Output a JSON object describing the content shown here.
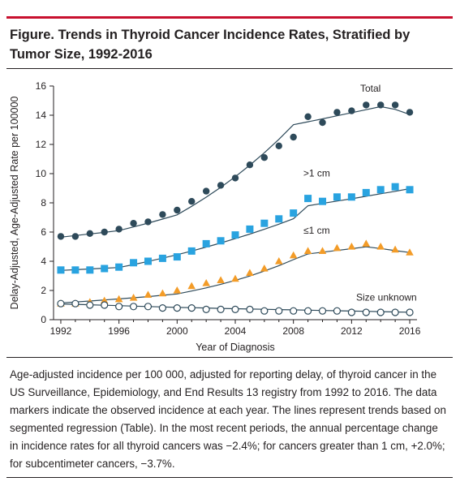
{
  "figure": {
    "title": "Figure. Trends in Thyroid Cancer Incidence Rates, Stratified by Tumor Size, 1992-2016",
    "caption": "Age-adjusted incidence per 100 000, adjusted for reporting delay, of thyroid cancer in the US Surveillance, Epidemiology, and End Results 13 registry from 1992 to 2016. The data markers indicate the observed incidence at each year. The lines represent trends based on segmented regression (Table). In the most recent periods, the annual percentage change in incidence rates for all thyroid cancers was −2.4%; for cancers greater than 1 cm, +2.0%; for subcentimeter cancers, −3.7%."
  },
  "colors": {
    "accent_rule": "#c8102e",
    "total": "#2e4a5a",
    "gt1cm": "#29a3e0",
    "le1cm": "#f39c28",
    "unknown": "#ffffff",
    "unknown_stroke": "#2e4a5a",
    "trend_line": "#2e4a5a"
  },
  "chart_data": {
    "type": "line",
    "xlabel": "Year of Diagnosis",
    "ylabel": "Delay-Adjusted, Age-Adjusted Rate per 100000",
    "xlim": [
      1991.5,
      2016.5
    ],
    "ylim": [
      0,
      16
    ],
    "xticks": [
      1992,
      1996,
      2000,
      2004,
      2008,
      2012,
      2016
    ],
    "yticks": [
      0,
      2,
      4,
      6,
      8,
      10,
      12,
      14,
      16
    ],
    "grid": false,
    "legend": "inline labels",
    "x": [
      1992,
      1993,
      1994,
      1995,
      1996,
      1997,
      1998,
      1999,
      2000,
      2001,
      2002,
      2003,
      2004,
      2005,
      2006,
      2007,
      2008,
      2009,
      2010,
      2011,
      2012,
      2013,
      2014,
      2015,
      2016
    ],
    "series": [
      {
        "name": "Total",
        "marker": "circle",
        "values": [
          5.7,
          5.7,
          5.9,
          6.0,
          6.2,
          6.6,
          6.7,
          7.2,
          7.5,
          8.1,
          8.8,
          9.2,
          9.7,
          10.6,
          11.1,
          11.9,
          12.5,
          13.9,
          13.5,
          14.2,
          14.3,
          14.7,
          14.7,
          14.7,
          14.2
        ],
        "trend": [
          5.65,
          5.76,
          5.87,
          5.98,
          6.1,
          6.35,
          6.61,
          6.89,
          7.18,
          7.76,
          8.39,
          9.06,
          9.79,
          10.58,
          11.43,
          12.35,
          13.35,
          13.55,
          13.75,
          13.96,
          14.17,
          14.38,
          14.59,
          14.4,
          14.05
        ]
      },
      {
        "name": ">1 cm",
        "marker": "square",
        "values": [
          3.4,
          3.4,
          3.4,
          3.5,
          3.6,
          3.9,
          4.0,
          4.2,
          4.3,
          4.7,
          5.2,
          5.4,
          5.8,
          6.2,
          6.6,
          6.9,
          7.3,
          8.3,
          8.1,
          8.4,
          8.4,
          8.7,
          8.9,
          9.1,
          8.9
        ],
        "trend": [
          3.37,
          3.42,
          3.47,
          3.52,
          3.57,
          3.77,
          3.99,
          4.21,
          4.45,
          4.7,
          4.97,
          5.25,
          5.55,
          5.86,
          6.19,
          6.54,
          6.91,
          7.8,
          7.96,
          8.12,
          8.28,
          8.45,
          8.62,
          8.79,
          8.97
        ]
      },
      {
        "name": "≤1 cm",
        "marker": "triangle",
        "values": [
          1.1,
          1.1,
          1.2,
          1.3,
          1.4,
          1.5,
          1.7,
          1.8,
          2.0,
          2.3,
          2.5,
          2.7,
          2.8,
          3.2,
          3.5,
          4.0,
          4.4,
          4.7,
          4.7,
          4.9,
          5.0,
          5.2,
          5.0,
          4.8,
          4.6
        ],
        "trend": [
          1.15,
          1.21,
          1.28,
          1.35,
          1.42,
          1.5,
          1.58,
          1.67,
          1.76,
          1.96,
          2.18,
          2.42,
          2.69,
          2.99,
          3.33,
          3.7,
          4.11,
          4.5,
          4.62,
          4.74,
          4.86,
          4.99,
          4.87,
          4.73,
          4.6
        ]
      },
      {
        "name": "Size unknown",
        "marker": "circle-open",
        "values": [
          1.1,
          1.1,
          1.0,
          1.0,
          0.9,
          0.9,
          0.9,
          0.8,
          0.8,
          0.8,
          0.7,
          0.7,
          0.7,
          0.7,
          0.6,
          0.6,
          0.6,
          0.6,
          0.6,
          0.6,
          0.5,
          0.5,
          0.5,
          0.5,
          0.5
        ],
        "trend": [
          1.08,
          1.05,
          1.02,
          0.99,
          0.96,
          0.93,
          0.9,
          0.87,
          0.84,
          0.82,
          0.8,
          0.77,
          0.75,
          0.73,
          0.71,
          0.69,
          0.67,
          0.65,
          0.63,
          0.61,
          0.59,
          0.57,
          0.55,
          0.53,
          0.51
        ]
      }
    ]
  }
}
